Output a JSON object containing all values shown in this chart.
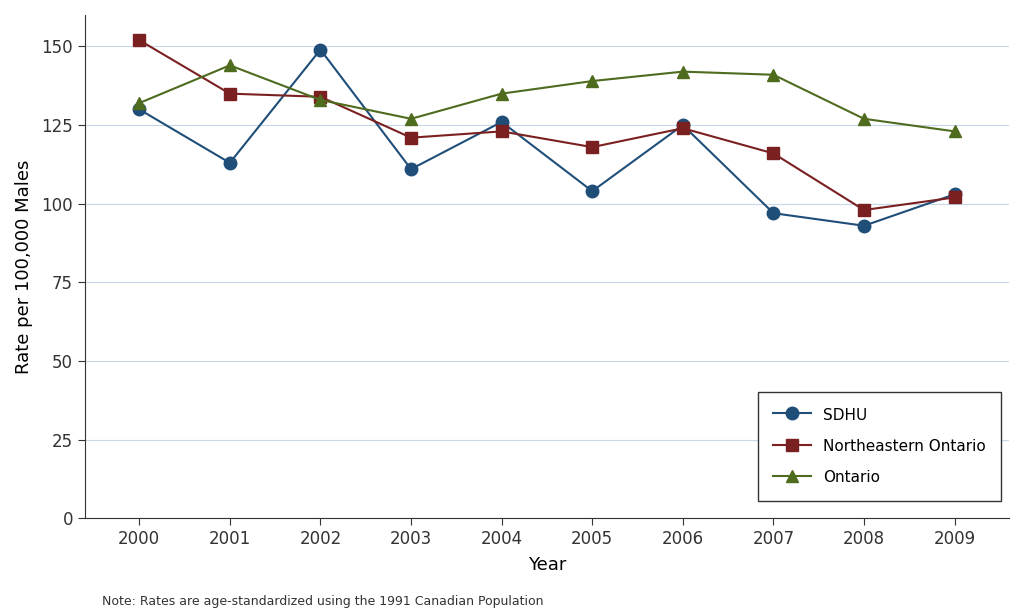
{
  "years": [
    2000,
    2001,
    2002,
    2003,
    2004,
    2005,
    2006,
    2007,
    2008,
    2009
  ],
  "sdhu": [
    130,
    113,
    149,
    111,
    126,
    104,
    125,
    97,
    93,
    103
  ],
  "northeastern_ontario": [
    152,
    135,
    134,
    121,
    123,
    118,
    124,
    116,
    98,
    102
  ],
  "ontario": [
    132,
    144,
    133,
    127,
    135,
    139,
    142,
    141,
    127,
    123
  ],
  "sdhu_color": "#1f4e79",
  "ne_ontario_color": "#7b2020",
  "ontario_color": "#4e6b1e",
  "ylabel": "Rate per 100,000 Males",
  "xlabel": "Year",
  "note": "Note: Rates are age-standardized using the 1991 Canadian Population",
  "ylim_min": 0,
  "ylim_max": 160,
  "yticks": [
    0,
    25,
    50,
    75,
    100,
    125,
    150
  ],
  "legend_labels": [
    "SDHU",
    "Northeastern Ontario",
    "Ontario"
  ],
  "background_color": "#ffffff",
  "grid_color": "#c8d8e8",
  "spine_color": "#333333",
  "tick_fontsize": 12,
  "label_fontsize": 13,
  "note_fontsize": 9,
  "legend_fontsize": 11,
  "markersize": 9,
  "linewidth": 1.5
}
